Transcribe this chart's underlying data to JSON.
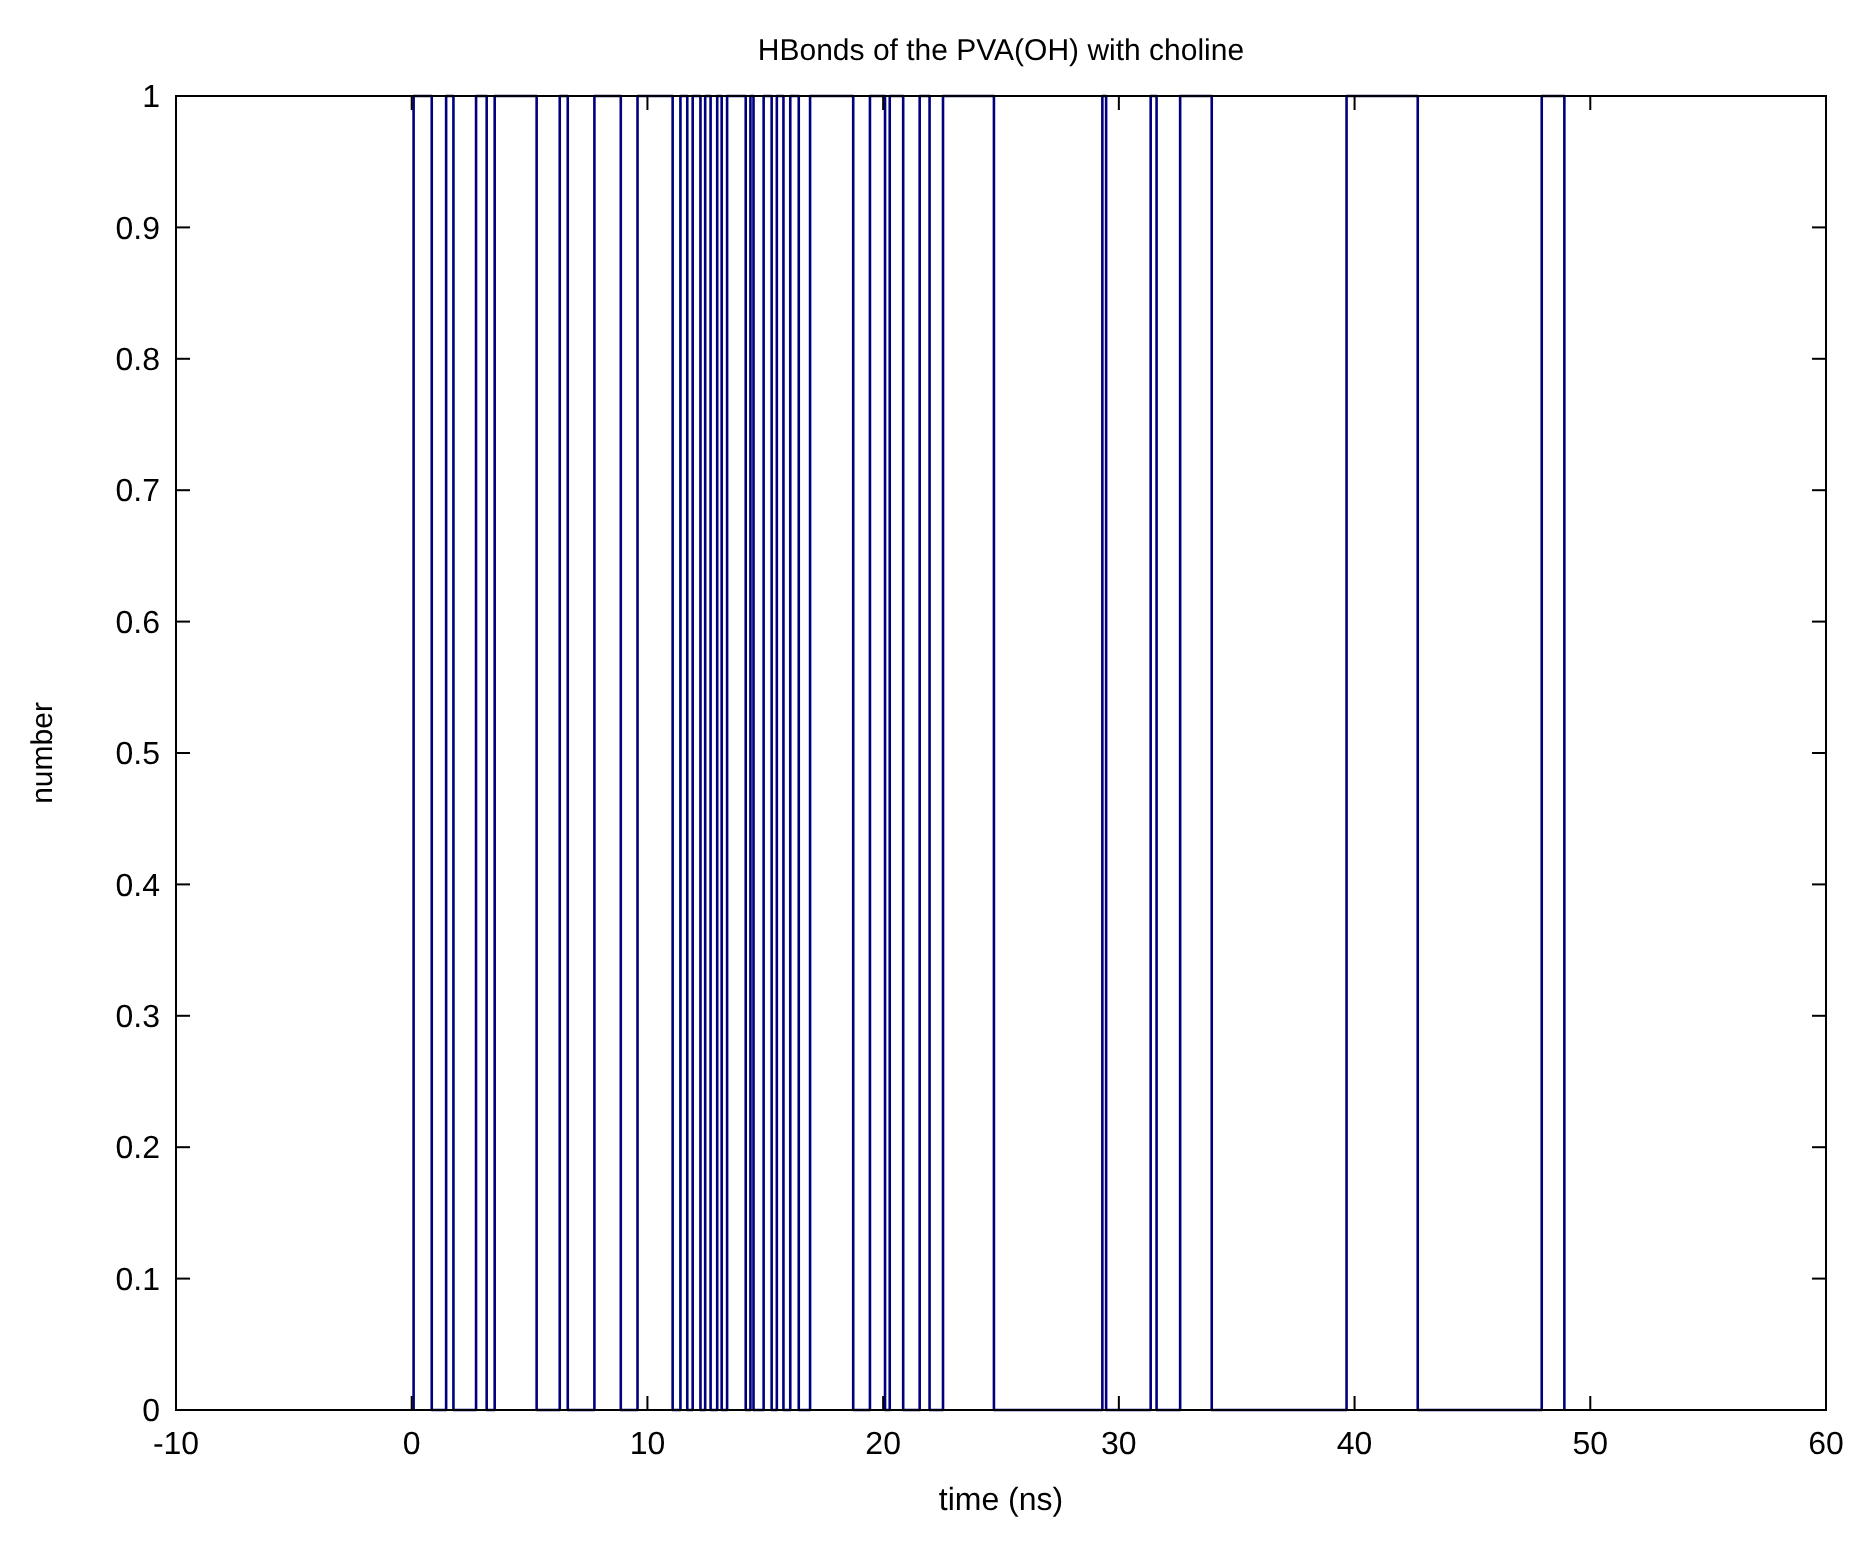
{
  "chart_data": {
    "type": "line",
    "title": "HBonds of the PVA(OH) with choline",
    "xlabel": "time (ns)",
    "ylabel": "number",
    "series": [
      {
        "color": "#00007f",
        "x": [
          0.08,
          0.08,
          0.85,
          0.85,
          1.46,
          1.46,
          1.77,
          1.77,
          2.73,
          2.73,
          3.18,
          3.18,
          3.52,
          3.52,
          5.3,
          5.3,
          6.28,
          6.28,
          6.62,
          6.62,
          7.75,
          7.75,
          8.87,
          8.87,
          9.58,
          9.58,
          11.07,
          11.07,
          11.4,
          11.4,
          11.69,
          11.69,
          11.92,
          11.92,
          12.25,
          12.25,
          12.45,
          12.45,
          12.68,
          12.68,
          12.96,
          12.96,
          13.15,
          13.15,
          13.38,
          13.38,
          14.17,
          14.17,
          14.37,
          14.37,
          14.5,
          14.5,
          14.93,
          14.93,
          15.27,
          15.27,
          15.49,
          15.49,
          15.77,
          15.77,
          16.06,
          16.06,
          16.42,
          16.42,
          16.9,
          16.9,
          18.73,
          18.73,
          19.44,
          19.44,
          20.08,
          20.08,
          20.28,
          20.28,
          20.85,
          20.85,
          21.55,
          21.55,
          21.97,
          21.97,
          22.54,
          22.54,
          24.7,
          24.7,
          29.3,
          29.3,
          29.46,
          29.46,
          31.35,
          31.35,
          31.6,
          31.6,
          32.6,
          32.6,
          33.94,
          33.94,
          39.66,
          39.66,
          42.68,
          42.68,
          47.94,
          47.94,
          48.9,
          48.9
        ],
        "values": [
          0,
          1,
          1,
          0,
          0,
          1,
          1,
          0,
          0,
          1,
          1,
          0,
          0,
          1,
          1,
          0,
          0,
          1,
          1,
          0,
          0,
          1,
          1,
          0,
          0,
          1,
          1,
          0,
          0,
          1,
          1,
          0,
          0,
          1,
          1,
          0,
          0,
          1,
          1,
          0,
          0,
          1,
          1,
          0,
          0,
          1,
          1,
          0,
          0,
          1,
          1,
          0,
          0,
          1,
          1,
          0,
          0,
          1,
          1,
          0,
          0,
          1,
          1,
          0,
          0,
          1,
          1,
          0,
          0,
          1,
          1,
          0,
          0,
          1,
          1,
          0,
          0,
          1,
          1,
          0,
          0,
          1,
          1,
          0,
          0,
          1,
          1,
          0,
          0,
          1,
          1,
          0,
          0,
          1,
          1,
          0,
          0,
          1,
          1,
          0,
          0,
          1,
          1,
          0
        ]
      }
    ],
    "xlim": [
      -10,
      60
    ],
    "xticks": [
      -10,
      0,
      10,
      20,
      30,
      40,
      50,
      60
    ],
    "ylim": [
      0,
      1
    ],
    "yticks": [
      0,
      0.1,
      0.2,
      0.3,
      0.4,
      0.5,
      0.6,
      0.7,
      0.8,
      0.9,
      1
    ],
    "grid": false,
    "marker": "none",
    "line_style": "solid"
  }
}
